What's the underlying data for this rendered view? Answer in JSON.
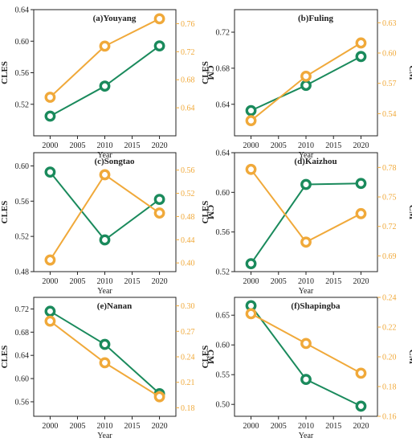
{
  "colors": {
    "cles": "#1a8a5c",
    "cm": "#f0a93a",
    "axis": "#222222"
  },
  "chart_data": [
    {
      "type": "line",
      "title": "(a)Youyang",
      "xlabel": "Year",
      "ylabel": "CLES",
      "y2label": "CM",
      "x": [
        2000,
        2010,
        2020
      ],
      "xticks": [
        "2000",
        "2005",
        "2010",
        "2015",
        "2020"
      ],
      "xlim": [
        1997,
        2023
      ],
      "ylim": [
        0.48,
        0.64
      ],
      "yticks": [
        "0.52",
        "0.56",
        "0.60",
        "0.64"
      ],
      "y2lim": [
        0.6,
        0.78
      ],
      "y2ticks": [
        "0.64",
        "0.68",
        "0.72",
        "0.76"
      ],
      "series": [
        {
          "name": "CLES",
          "axis": "left",
          "values": [
            0.505,
            0.543,
            0.594
          ]
        },
        {
          "name": "CM",
          "axis": "right",
          "values": [
            0.655,
            0.728,
            0.767
          ]
        }
      ]
    },
    {
      "type": "line",
      "title": "(b)Fuling",
      "xlabel": "Year",
      "ylabel": "CLES",
      "y2label": "CM",
      "x": [
        2000,
        2010,
        2020
      ],
      "xticks": [
        "2000",
        "2005",
        "2010",
        "2015",
        "2020"
      ],
      "xlim": [
        1997,
        2023
      ],
      "ylim": [
        0.605,
        0.745
      ],
      "yticks": [
        "0.64",
        "0.68",
        "0.72"
      ],
      "y2lim": [
        0.518,
        0.643
      ],
      "y2ticks": [
        "0.54",
        "0.57",
        "0.60",
        "0.63"
      ],
      "series": [
        {
          "name": "CLES",
          "axis": "left",
          "values": [
            0.633,
            0.661,
            0.693
          ]
        },
        {
          "name": "CM",
          "axis": "right",
          "values": [
            0.533,
            0.577,
            0.61
          ]
        }
      ]
    },
    {
      "type": "line",
      "title": "(c)Songtao",
      "xlabel": "Year",
      "ylabel": "CLES",
      "y2label": "CM",
      "x": [
        2000,
        2010,
        2020
      ],
      "xticks": [
        "2000",
        "2005",
        "2010",
        "2015",
        "2020"
      ],
      "xlim": [
        1997,
        2023
      ],
      "ylim": [
        0.48,
        0.615
      ],
      "yticks": [
        "0.48",
        "0.52",
        "0.56",
        "0.60"
      ],
      "y2lim": [
        0.385,
        0.59
      ],
      "y2ticks": [
        "0.40",
        "0.44",
        "0.48",
        "0.52",
        "0.56"
      ],
      "series": [
        {
          "name": "CLES",
          "axis": "left",
          "values": [
            0.593,
            0.516,
            0.562
          ]
        },
        {
          "name": "CM",
          "axis": "right",
          "values": [
            0.405,
            0.552,
            0.486
          ]
        }
      ]
    },
    {
      "type": "line",
      "title": "(d)Kaizhou",
      "xlabel": "Year",
      "ylabel": "CLES",
      "y2label": "CM",
      "x": [
        2000,
        2010,
        2020
      ],
      "xticks": [
        "2000",
        "2005",
        "2010",
        "2015",
        "2020"
      ],
      "xlim": [
        1997,
        2023
      ],
      "ylim": [
        0.52,
        0.64
      ],
      "yticks": [
        "0.52",
        "0.56",
        "0.60",
        "0.64"
      ],
      "y2lim": [
        0.674,
        0.795
      ],
      "y2ticks": [
        "0.69",
        "0.72",
        "0.75",
        "0.78"
      ],
      "series": [
        {
          "name": "CLES",
          "axis": "left",
          "values": [
            0.528,
            0.608,
            0.609
          ]
        },
        {
          "name": "CM",
          "axis": "right",
          "values": [
            0.778,
            0.704,
            0.733
          ]
        }
      ]
    },
    {
      "type": "line",
      "title": "(e)Nanan",
      "xlabel": "Year",
      "ylabel": "CLES",
      "y2label": "CM",
      "x": [
        2000,
        2010,
        2020
      ],
      "xticks": [
        "2000",
        "2005",
        "2010",
        "2015",
        "2020"
      ],
      "xlim": [
        1997,
        2023
      ],
      "ylim": [
        0.535,
        0.74
      ],
      "yticks": [
        "0.56",
        "0.60",
        "0.64",
        "0.68",
        "0.72"
      ],
      "y2lim": [
        0.17,
        0.31
      ],
      "y2ticks": [
        "0.18",
        "0.21",
        "0.24",
        "0.27",
        "0.30"
      ],
      "series": [
        {
          "name": "CLES",
          "axis": "left",
          "values": [
            0.716,
            0.659,
            0.574
          ]
        },
        {
          "name": "CM",
          "axis": "right",
          "values": [
            0.282,
            0.233,
            0.193
          ]
        }
      ]
    },
    {
      "type": "line",
      "title": "(f)Shapingba",
      "xlabel": "Year",
      "ylabel": "CLES",
      "y2label": "CM",
      "x": [
        2000,
        2010,
        2020
      ],
      "xticks": [
        "2000",
        "2005",
        "2010",
        "2015",
        "2020"
      ],
      "xlim": [
        1997,
        2023
      ],
      "ylim": [
        0.48,
        0.68
      ],
      "yticks": [
        "0.50",
        "0.55",
        "0.60",
        "0.65"
      ],
      "y2lim": [
        0.16,
        0.24
      ],
      "y2ticks": [
        "0.16",
        "0.18",
        "0.20",
        "0.22",
        "0.24"
      ],
      "series": [
        {
          "name": "CLES",
          "axis": "left",
          "values": [
            0.666,
            0.542,
            0.497
          ]
        },
        {
          "name": "CM",
          "axis": "right",
          "values": [
            0.229,
            0.209,
            0.189
          ]
        }
      ]
    }
  ]
}
